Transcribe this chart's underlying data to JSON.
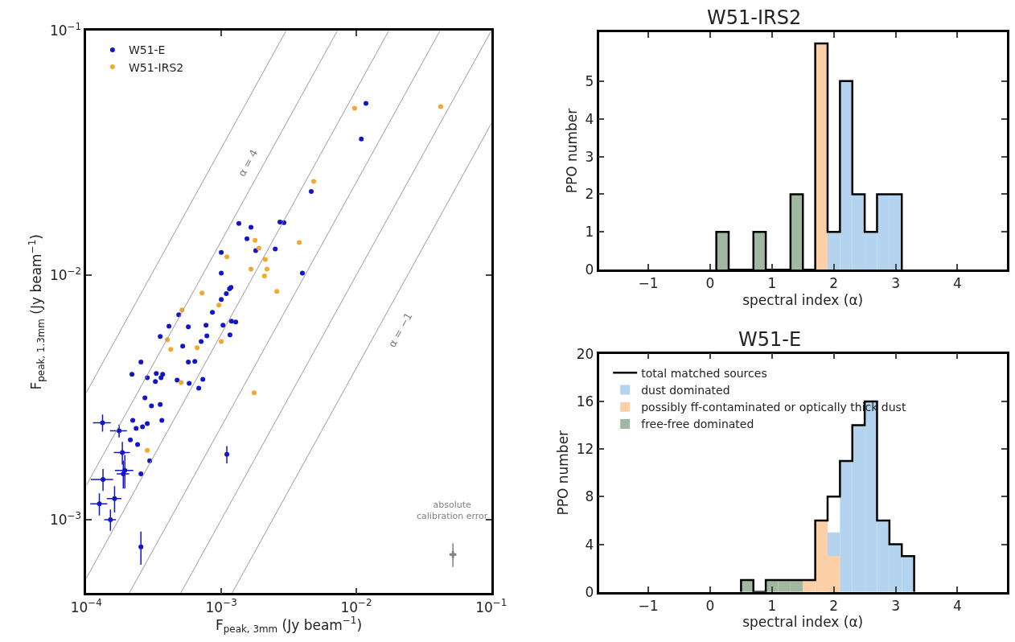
{
  "chart_data": [
    {
      "type": "scatter",
      "xlabel": "F$_{peak, 3mm}$ (Jy beam$^{−1}$)",
      "ylabel": "F$_{peak, 1.3mm}$ (Jy beam$^{−1}$)",
      "log": "xy",
      "xlim": [
        0.0001,
        0.1
      ],
      "ylim": [
        0.0005,
        0.1
      ],
      "xticks": [
        {
          "value": 0.0001,
          "label": "10$^{−4}$"
        },
        {
          "value": 0.001,
          "label": "10$^{−3}$"
        },
        {
          "value": 0.01,
          "label": "10$^{−2}$"
        },
        {
          "value": 0.1,
          "label": "10$^{−1}$"
        }
      ],
      "yticks": [
        {
          "value": 0.001,
          "label": "10$^{−3}$"
        },
        {
          "value": 0.01,
          "label": "10$^{−2}$"
        },
        {
          "value": 0.1,
          "label": "10$^{−1}$"
        }
      ],
      "legend": "top left",
      "marker": "circle",
      "series": [
        {
          "name": "W51-E",
          "color": "#1414c8",
          "x": [
            0.0118,
            0.0109,
            0.00464,
            0.00272,
            0.00291,
            0.00135,
            0.00166,
            0.00155,
            0.0018,
            0.00251,
            0.001,
            0.001,
            0.00399,
            0.00118,
            0.00115,
            0.00109,
            0.001,
            0.00086,
            0.000484,
            0.00041,
            0.00057,
            0.000771,
            0.00103,
            0.00119,
            0.00128,
            0.000782,
            0.00071,
            0.00116,
            0.000353,
            0.000518,
            0.000254,
            0.00057,
            0.000637,
            0.000218,
            0.000283,
            0.00033,
            0.000368,
            0.000358,
            0.000325,
            0.000471,
            0.000578,
            0.00073,
            0.000681,
            0.000272,
            0.000304,
            0.000353,
            0.000132,
            0.000221,
            0.000283,
            0.000261,
            0.000234,
            0.000363,
            0.000175,
            0.000212,
            0.00024,
            0.000185,
            0.000295,
            0.000193,
            0.000188,
            0.000254,
            0.000133,
            0.000162,
            0.000125,
            0.000151,
            0.000254,
            0.0011
          ],
          "values": [
            0.0505,
            0.0361,
            0.022,
            0.0165,
            0.0164,
            0.0163,
            0.0157,
            0.0141,
            0.0126,
            0.0128,
            0.0124,
            0.0102,
            0.0102,
            0.00891,
            0.00879,
            0.0084,
            0.00796,
            0.00705,
            0.00689,
            0.00619,
            0.00615,
            0.00624,
            0.00624,
            0.00649,
            0.00644,
            0.00565,
            0.00536,
            0.0057,
            0.00561,
            0.00513,
            0.00441,
            0.00441,
            0.00444,
            0.00393,
            0.00381,
            0.00396,
            0.00393,
            0.00381,
            0.00367,
            0.00372,
            0.00361,
            0.00375,
            0.00345,
            0.00315,
            0.00292,
            0.00296,
            0.00249,
            0.00255,
            0.00247,
            0.0024,
            0.00236,
            0.00255,
            0.00231,
            0.00212,
            0.00203,
            0.00188,
            0.00174,
            0.00159,
            0.00154,
            0.00154,
            0.00146,
            0.00122,
            0.00116,
            0.001,
            0.000773,
            0.00185
          ],
          "errors": [
            null,
            null,
            null,
            null,
            null,
            null,
            null,
            null,
            null,
            null,
            null,
            null,
            null,
            null,
            null,
            null,
            null,
            null,
            null,
            null,
            null,
            null,
            null,
            null,
            null,
            null,
            null,
            null,
            null,
            null,
            null,
            null,
            null,
            null,
            null,
            null,
            null,
            null,
            null,
            null,
            null,
            null,
            null,
            null,
            null,
            null,
            0.0002,
            null,
            null,
            null,
            null,
            null,
            0.00014,
            null,
            null,
            0.0002,
            null,
            0.00025,
            0.0002,
            null,
            0.00015,
            0.00015,
            0.00012,
            0.0001,
            0.00012,
            0.00015
          ],
          "xerrors": [
            null,
            null,
            null,
            null,
            null,
            null,
            null,
            null,
            null,
            null,
            null,
            null,
            null,
            null,
            null,
            null,
            null,
            null,
            null,
            null,
            null,
            null,
            null,
            null,
            null,
            null,
            null,
            null,
            null,
            null,
            null,
            null,
            null,
            null,
            null,
            null,
            null,
            null,
            null,
            null,
            null,
            null,
            null,
            null,
            null,
            null,
            2e-05,
            null,
            null,
            null,
            null,
            null,
            2.5e-05,
            null,
            null,
            2.5e-05,
            null,
            3e-05,
            2e-05,
            null,
            2.5e-05,
            2e-05,
            1.8e-05,
            1.5e-05,
            1e-05,
            3e-05
          ]
        },
        {
          "name": "W51-IRS2",
          "color": "#f0a830",
          "x": [
            0.00973,
            0.0422,
            0.00484,
            0.00378,
            0.00178,
            0.0019,
            0.00212,
            0.00218,
            0.00209,
            0.00166,
            0.0011,
            0.00258,
            0.00072,
            0.00096,
            0.000511,
            0.000399,
            0.000422,
            0.000662,
            0.001,
            0.000504,
            0.00175,
            0.000283
          ],
          "values": [
            0.0482,
            0.049,
            0.0242,
            0.0136,
            0.0139,
            0.0129,
            0.0116,
            0.0106,
            0.00993,
            0.0106,
            0.0119,
            0.00859,
            0.00846,
            0.00755,
            0.00721,
            0.00545,
            0.00497,
            0.00505,
            0.00536,
            0.00364,
            0.0033,
            0.00192
          ]
        },
        {
          "color": "#808080",
          "marker": "cross",
          "x": [
            0.052
          ],
          "values": [
            0.00072
          ],
          "errors": [
            8e-05
          ],
          "xerrors": [
            0.003
          ]
        },
        {
          "type": "line",
          "color": "#909090",
          "marker": "none",
          "line_style": "solid",
          "x": [
            0.0001,
            0.00302
          ],
          "values": [
            0.00331,
            0.1
          ]
        },
        {
          "type": "line",
          "color": "#909090",
          "marker": "none",
          "line_style": "solid",
          "x": [
            0.0001,
            0.00724
          ],
          "values": [
            0.00138,
            0.1
          ]
        },
        {
          "type": "line",
          "color": "#909090",
          "marker": "none",
          "line_style": "solid",
          "x": [
            0.0001,
            0.0174
          ],
          "values": [
            0.000575,
            0.1
          ]
        },
        {
          "type": "line",
          "color": "#909090",
          "marker": "none",
          "line_style": "solid",
          "x": [
            0.000208,
            0.0417
          ],
          "values": [
            0.0005,
            0.1
          ]
        },
        {
          "type": "line",
          "color": "#909090",
          "marker": "none",
          "line_style": "solid",
          "x": [
            0.0005,
            0.1
          ],
          "values": [
            0.0005,
            0.1
          ]
        },
        {
          "type": "line",
          "color": "#909090",
          "marker": "none",
          "line_style": "solid",
          "x": [
            0.0012,
            0.1
          ],
          "values": [
            0.0005,
            0.0417
          ]
        }
      ],
      "annotations": [
        "α = 4",
        "α = −1",
        "absolute\ncalibration error"
      ]
    },
    {
      "type": "histogram",
      "title": "W51-IRS2",
      "xlabel": "spectral index (α)",
      "ylabel": "PPO number",
      "xlim": [
        -1.8,
        4.8
      ],
      "ylim": [
        0,
        6.3
      ],
      "xticks": [
        {
          "value": -1,
          "label": "−1"
        },
        0,
        1,
        2,
        3,
        4
      ],
      "yticks": [
        0,
        1,
        2,
        3,
        4,
        5
      ],
      "legend": false,
      "bins": [
        0.1,
        0.3,
        0.5,
        0.7,
        0.9,
        1.1,
        1.3,
        1.5,
        1.7,
        1.9,
        2.1,
        2.3,
        2.5,
        2.7,
        2.9,
        3.1
      ],
      "series": [
        {
          "type": "step",
          "color": "#000000",
          "x": [
            0.1,
            0.1,
            0.3,
            0.5,
            0.7,
            0.9,
            1.1,
            1.3,
            1.5,
            1.7,
            1.9,
            2.1,
            2.3,
            2.5,
            2.7,
            2.9,
            3.1
          ],
          "values": [
            0,
            1,
            0,
            0,
            1,
            0,
            0,
            2,
            0,
            6,
            1,
            5,
            2,
            1,
            2,
            2,
            0
          ]
        },
        {
          "color": "#b3d3ee",
          "values": [
            0,
            0,
            0,
            0,
            0,
            0,
            0,
            0,
            0,
            1,
            5,
            2,
            1,
            2,
            2
          ]
        },
        {
          "color": "#fdcfa6",
          "values": [
            0,
            0,
            0,
            0,
            0,
            0,
            0,
            0,
            6,
            0,
            0,
            0,
            0,
            0,
            0
          ]
        },
        {
          "color": "#9fb89f",
          "values": [
            1,
            0,
            0,
            1,
            0,
            0,
            2,
            0,
            0,
            0,
            0,
            0,
            0,
            0,
            0
          ]
        }
      ]
    },
    {
      "type": "histogram",
      "title": "W51-E",
      "xlabel": "spectral index (α)",
      "ylabel": "PPO number",
      "xlim": [
        -1.8,
        4.8
      ],
      "ylim": [
        0,
        20
      ],
      "xticks": [
        {
          "value": -1,
          "label": "−1"
        },
        0,
        1,
        2,
        3,
        4
      ],
      "yticks": [
        0,
        4,
        8,
        12,
        16,
        20
      ],
      "legend": "top left",
      "bins": [
        0.5,
        0.7,
        0.9,
        1.1,
        1.3,
        1.5,
        1.7,
        1.9,
        2.1,
        2.3,
        2.5,
        2.7,
        2.9,
        3.1,
        3.3
      ],
      "series": [
        {
          "type": "step",
          "name": "total matched sources",
          "color": "#000000",
          "x": [
            0.5,
            0.5,
            0.7,
            0.9,
            1.1,
            1.3,
            1.5,
            1.7,
            1.9,
            2.1,
            2.3,
            2.5,
            2.7,
            2.9,
            3.1,
            3.3
          ],
          "values": [
            0,
            1,
            0,
            1,
            1,
            1,
            1,
            6,
            8,
            11,
            14,
            16,
            6,
            4,
            3,
            0
          ]
        },
        {
          "name": "dust dominated",
          "color": "#b3d3ee",
          "values": [
            0,
            0,
            0,
            0,
            0,
            0,
            0,
            5,
            11,
            14,
            16,
            6,
            4,
            3
          ]
        },
        {
          "name": "possibly ff-contaminated or optically thick dust",
          "color": "#fdcfa6",
          "values": [
            0,
            0,
            0,
            0,
            0,
            1,
            6,
            3,
            0,
            0,
            0,
            0,
            0,
            0
          ]
        },
        {
          "name": "free-free dominated",
          "color": "#9fb89f",
          "values": [
            1,
            0,
            1,
            1,
            1,
            0,
            0,
            0,
            0,
            0,
            0,
            0,
            0,
            0
          ]
        }
      ]
    }
  ]
}
